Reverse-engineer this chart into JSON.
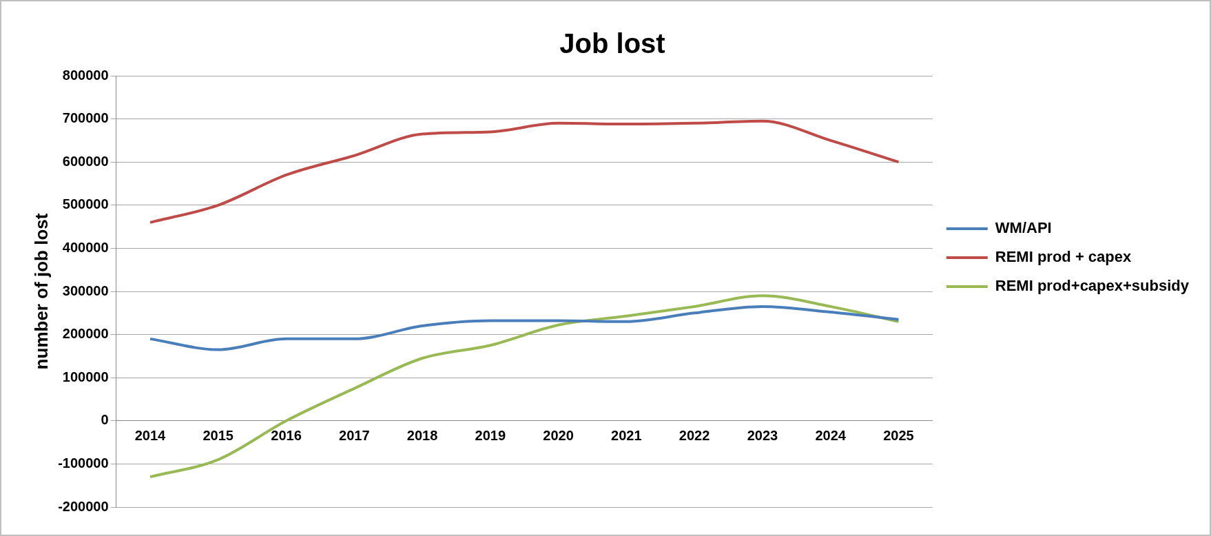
{
  "chart_data": {
    "type": "line",
    "title": "Job lost",
    "ylabel": "number of job lost",
    "categories": [
      "2014",
      "2015",
      "2016",
      "2017",
      "2018",
      "2019",
      "2020",
      "2021",
      "2022",
      "2023",
      "2024",
      "2025"
    ],
    "series": [
      {
        "name": "WM/API",
        "color": "#4a7ebb",
        "values": [
          190000,
          165000,
          190000,
          190000,
          220000,
          232000,
          232000,
          230000,
          250000,
          265000,
          252000,
          235000
        ]
      },
      {
        "name": "REMI prod + capex",
        "color": "#be4b48",
        "values": [
          460000,
          500000,
          570000,
          615000,
          665000,
          670000,
          690000,
          688000,
          690000,
          695000,
          650000,
          600000
        ]
      },
      {
        "name": "REMI prod+capex+subsidy",
        "color": "#98b954",
        "values": [
          -130000,
          -90000,
          0,
          75000,
          145000,
          175000,
          222000,
          243000,
          265000,
          290000,
          265000,
          230000
        ]
      }
    ],
    "ylim": [
      -200000,
      800000
    ],
    "yticks": [
      -200000,
      -100000,
      0,
      100000,
      200000,
      300000,
      400000,
      500000,
      600000,
      700000,
      800000
    ],
    "grid": "y",
    "legend": "right",
    "marker": "none",
    "line_style": "solid"
  }
}
